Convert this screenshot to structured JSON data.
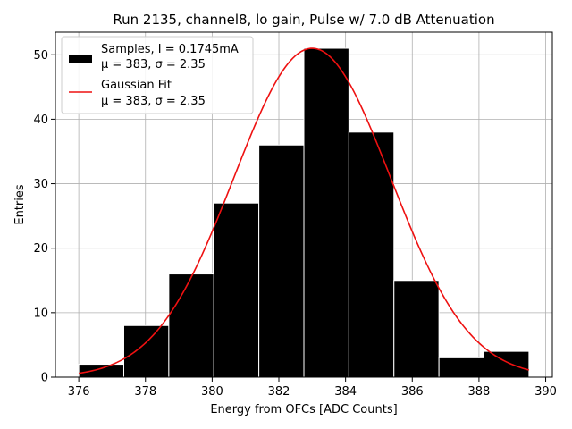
{
  "chart_data": {
    "type": "bar",
    "title": "Run 2135, channel8, lo gain, Pulse w/ 7.0 dB Attenuation",
    "xlabel": "Energy from OFCs [ADC Counts]",
    "ylabel": "Entries",
    "xlim": [
      375.3,
      390.2
    ],
    "ylim": [
      0,
      53.5
    ],
    "xticks": [
      376,
      378,
      380,
      382,
      384,
      386,
      388,
      390
    ],
    "yticks": [
      0,
      10,
      20,
      30,
      40,
      50
    ],
    "grid": true,
    "legend_position": "top-left",
    "bin_edges": [
      376.0,
      377.35,
      378.7,
      380.05,
      381.4,
      382.75,
      384.1,
      385.45,
      386.8,
      388.15,
      389.5
    ],
    "values": [
      2,
      8,
      16,
      27,
      36,
      51,
      38,
      15,
      3,
      4
    ],
    "bar_color": "#000000",
    "fit": {
      "type": "gaussian",
      "mu": 383.0,
      "sigma": 2.35,
      "amplitude": 51,
      "x_range": [
        376.0,
        389.5
      ],
      "color": "#ee1111"
    },
    "legend": [
      {
        "label": "Samples, I = 0.1745mA",
        "stats": "μ = 383, σ = 2.35",
        "kind": "bar"
      },
      {
        "label": "Gaussian Fit",
        "stats": "μ = 383, σ = 2.35",
        "kind": "line"
      }
    ]
  }
}
